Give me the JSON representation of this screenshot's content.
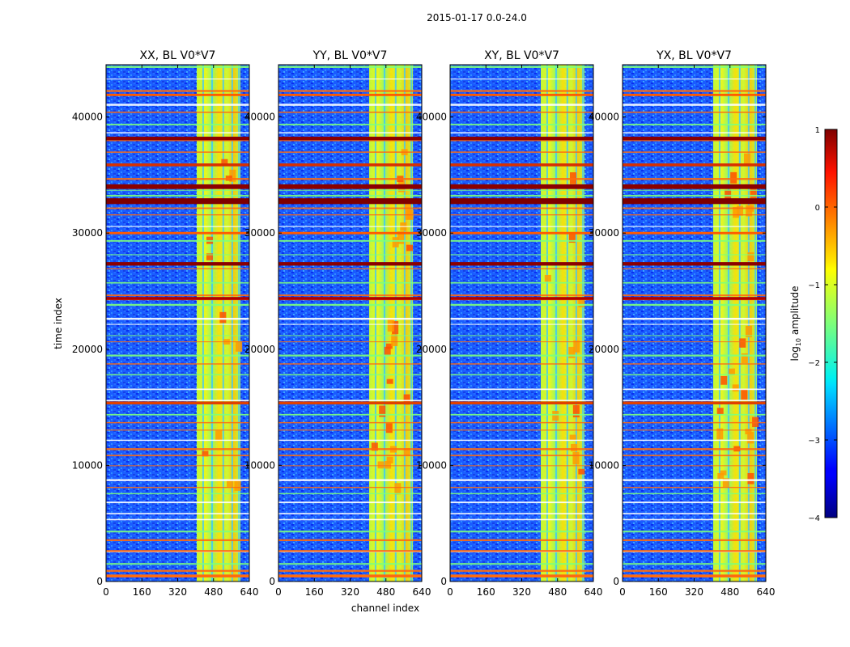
{
  "chart_data": {
    "type": "heatmap",
    "suptitle": "2015-01-17 0.0-24.0",
    "xlabel": "channel index",
    "ylabel": "time index",
    "xlim": [
      0,
      640
    ],
    "ylim": [
      0,
      44500
    ],
    "x_ticks": [
      "0",
      "160",
      "320",
      "480",
      "640"
    ],
    "y_ticks": [
      "0",
      "10000",
      "20000",
      "30000",
      "40000"
    ],
    "x_tick_values": [
      0,
      160,
      320,
      480,
      640
    ],
    "y_tick_values": [
      0,
      10000,
      20000,
      30000,
      40000
    ],
    "panels": [
      {
        "title": "XX, BL V0*V7",
        "pol": "XX"
      },
      {
        "title": "YY, BL V0*V7",
        "pol": "YY"
      },
      {
        "title": "XY, BL V0*V7",
        "pol": "XY"
      },
      {
        "title": "YX, BL V0*V7",
        "pol": "YX"
      }
    ],
    "colorbar": {
      "label": "log10 amplitude",
      "label_base": "log",
      "label_sub": "10",
      "label_rest": " amplitude",
      "range": [
        -4,
        1
      ],
      "ticks": [
        "1",
        "0",
        "−1",
        "−2",
        "−3",
        "−4"
      ],
      "tick_values": [
        1,
        0,
        -1,
        -2,
        -3,
        -4
      ],
      "colormap": "jet"
    },
    "features": {
      "bright_channel_band": [
        405,
        600
      ],
      "high_horizontal_rows": [
        33000,
        34200,
        38300,
        27500,
        24500,
        15500,
        600
      ],
      "bright_channel_band_amplitude": -0.8,
      "background_amplitude": -3.0
    }
  }
}
